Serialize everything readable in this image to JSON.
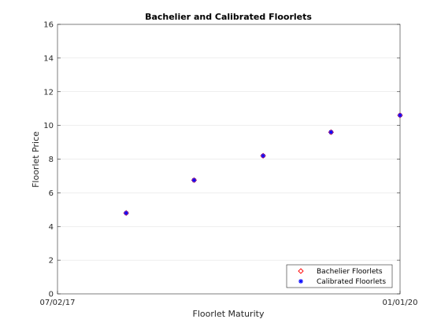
{
  "chart_data": {
    "type": "scatter",
    "title": "Bachelier and Calibrated Floorlets",
    "xlabel": "Floorlet Maturity",
    "ylabel": "Floorlet Price",
    "xlim": [
      "07/02/17",
      "01/01/20"
    ],
    "x_tick_labels": [
      "07/02/17",
      "01/01/20"
    ],
    "ylim": [
      0,
      16
    ],
    "y_ticks": [
      0,
      2,
      4,
      6,
      8,
      10,
      12,
      14,
      16
    ],
    "grid": "horizontal",
    "legend_position": "bottom-right",
    "x": [
      "01/01/18",
      "07/01/18",
      "01/01/19",
      "07/01/19",
      "01/01/20"
    ],
    "series": [
      {
        "name": "Bachelier Floorlets",
        "marker": "diamond",
        "color": "#ff0000",
        "values": [
          4.8,
          6.75,
          8.2,
          9.6,
          10.6
        ]
      },
      {
        "name": "Calibrated Floorlets",
        "marker": "asterisk",
        "color": "#0000ff",
        "values": [
          4.8,
          6.75,
          8.2,
          9.6,
          10.6
        ]
      }
    ]
  }
}
